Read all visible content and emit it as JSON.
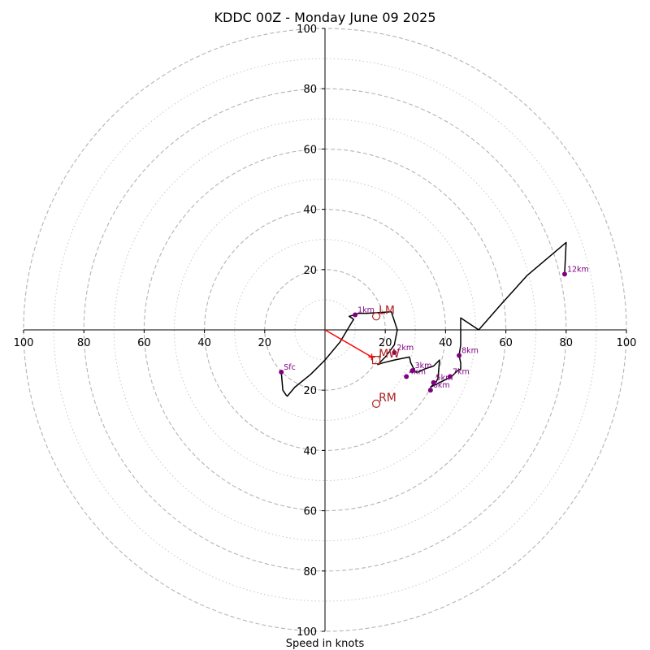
{
  "chart_data": {
    "type": "line",
    "title": "KDDC 00Z - Monday June 09 2025",
    "xlabel": "Speed in knots",
    "ylabel": "",
    "xlim": [
      -100,
      100
    ],
    "ylim": [
      -100,
      100
    ],
    "ticks": [
      100,
      80,
      60,
      40,
      20,
      0,
      20,
      40,
      60,
      80,
      100
    ],
    "tick_values": [
      -100,
      -80,
      -60,
      -40,
      -20,
      0,
      20,
      40,
      60,
      80,
      100
    ],
    "rings": {
      "dashed": [
        20,
        40,
        60,
        80,
        100
      ],
      "dotted": [
        10,
        30,
        50,
        70,
        90
      ]
    },
    "hodograph": {
      "color": "#000000",
      "points": [
        [
          -14.5,
          -14
        ],
        [
          -14,
          -20
        ],
        [
          -13,
          -21.5
        ],
        [
          -12.5,
          -22
        ],
        [
          -10,
          -19
        ],
        [
          -5,
          -15
        ],
        [
          -4.5,
          -14.5
        ],
        [
          0,
          -10
        ],
        [
          5,
          -4
        ],
        [
          9.5,
          3.5
        ],
        [
          8,
          4.5
        ],
        [
          10,
          5
        ],
        [
          11,
          5.5
        ],
        [
          14,
          5.5
        ],
        [
          22,
          6
        ],
        [
          24,
          0
        ],
        [
          23,
          -5
        ],
        [
          20,
          -9
        ],
        [
          19,
          -10
        ],
        [
          17.5,
          -11.5
        ],
        [
          19,
          -11
        ],
        [
          23,
          -10
        ],
        [
          28,
          -9
        ],
        [
          28.5,
          -11
        ],
        [
          29,
          -12
        ],
        [
          29.5,
          -13
        ],
        [
          30,
          -14
        ],
        [
          31,
          -14
        ],
        [
          33,
          -13
        ],
        [
          36,
          -12
        ],
        [
          38,
          -10
        ],
        [
          37.5,
          -16
        ],
        [
          37,
          -17
        ],
        [
          35,
          -19
        ],
        [
          36,
          -18.5
        ],
        [
          37,
          -18
        ],
        [
          38,
          -17.5
        ],
        [
          40,
          -16.5
        ],
        [
          42,
          -15.5
        ],
        [
          44,
          -13.5
        ],
        [
          45,
          -13
        ],
        [
          45,
          -11
        ],
        [
          44.5,
          -8.5
        ],
        [
          45,
          -5
        ],
        [
          45,
          4
        ],
        [
          48,
          2
        ],
        [
          51,
          0
        ],
        [
          58,
          8
        ],
        [
          67,
          18
        ],
        [
          80,
          29
        ],
        [
          79.5,
          18.5
        ]
      ]
    },
    "height_markers": [
      {
        "label": "Sfc",
        "u": -14.5,
        "v": -14
      },
      {
        "label": "1km",
        "u": 10,
        "v": 5
      },
      {
        "label": "2km",
        "u": 23,
        "v": -7.5
      },
      {
        "label": "3km",
        "u": 29,
        "v": -13.5
      },
      {
        "label": "4km",
        "u": 27,
        "v": -15.5
      },
      {
        "label": "5km",
        "u": 36,
        "v": -17.5
      },
      {
        "label": "6km",
        "u": 35,
        "v": -20
      },
      {
        "label": "7km",
        "u": 41.5,
        "v": -15.5
      },
      {
        "label": "8km",
        "u": 44.5,
        "v": -8.5
      },
      {
        "label": "12km",
        "u": 79.5,
        "v": 18.5
      }
    ],
    "marker_color": "#800080",
    "storm_motion": {
      "color": "#ff0000",
      "from": [
        0,
        0
      ],
      "to": [
        15.5,
        -9
      ]
    },
    "storm_points": [
      {
        "label": "LM",
        "u": 17,
        "v": 4.5,
        "shape": "circle"
      },
      {
        "label": "MW",
        "u": 17,
        "v": -10,
        "shape": "square"
      },
      {
        "label": "RM",
        "u": 17,
        "v": -24.5,
        "shape": "circle"
      }
    ],
    "storm_point_color": "#b22222",
    "grid": true
  }
}
